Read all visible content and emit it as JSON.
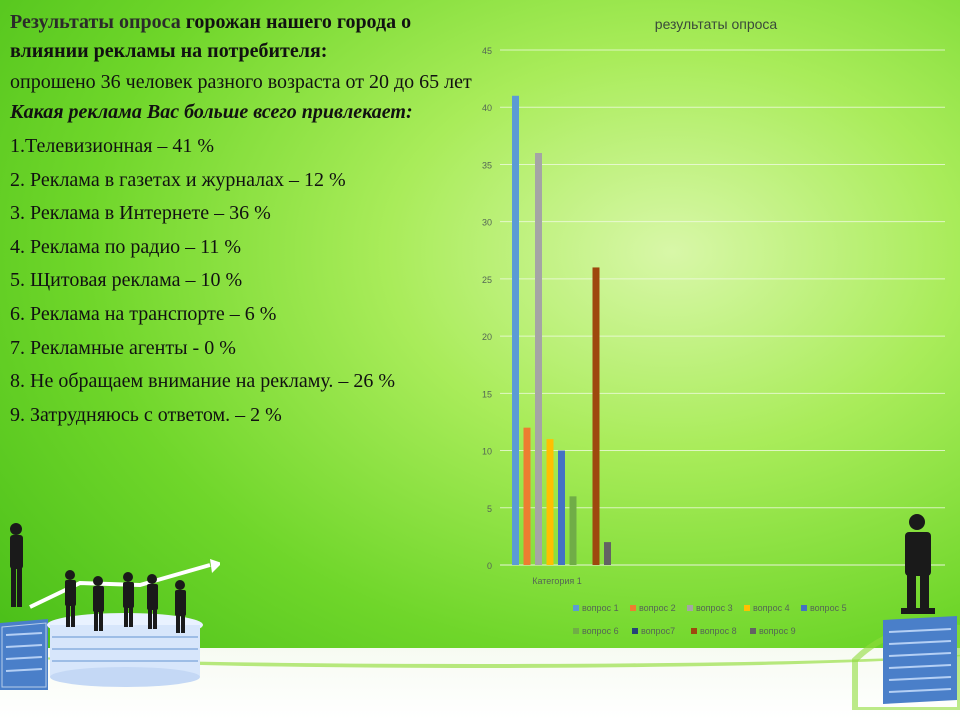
{
  "slide": {
    "title_part1": "Результаты опроса",
    "title_part2": " горожан нашего города о влиянии рекламы на потребителя:",
    "intro": "опрошено 36 человек разного возраста от 20 до 65 лет",
    "question": "Какая реклама Вас больше всего привлекает:",
    "items": [
      "1.Телевизионная – 41 %",
      "2. Реклама в газетах и журналах – 12 %",
      "3. Реклама в Интернете – 36 %",
      "4. Реклама по радио – 11 %",
      "5. Щитовая реклама – 10 %",
      "6. Реклама на транспорте – 6 %",
      "7. Рекламные агенты - 0 %",
      "8. Не обращаем внимание на рекламу. – 26 %",
      "9. Затрудняюсь с ответом. – 2 %"
    ]
  },
  "chart_data": {
    "type": "bar",
    "title": "результаты опроса",
    "categories": [
      "Категория 1"
    ],
    "ylim": [
      0,
      45
    ],
    "yticks": [
      0,
      5,
      10,
      15,
      20,
      25,
      30,
      35,
      40,
      45
    ],
    "grid": true,
    "legend_position": "bottom",
    "series": [
      {
        "name": "вопрос 1",
        "values": [
          41
        ],
        "color": "#5b9bd5"
      },
      {
        "name": "вопрос 2",
        "values": [
          12
        ],
        "color": "#ed7d31"
      },
      {
        "name": "вопрос 3",
        "values": [
          36
        ],
        "color": "#a5a5a5"
      },
      {
        "name": "вопрос 4",
        "values": [
          11
        ],
        "color": "#ffc000"
      },
      {
        "name": "вопрос 5",
        "values": [
          10
        ],
        "color": "#4472c4"
      },
      {
        "name": "вопрос 6",
        "values": [
          6
        ],
        "color": "#70ad47"
      },
      {
        "name": "вопрос7",
        "values": [
          0
        ],
        "color": "#264478"
      },
      {
        "name": "вопрос 8",
        "values": [
          26
        ],
        "color": "#9e480e"
      },
      {
        "name": "вопрос 9",
        "values": [
          2
        ],
        "color": "#636363"
      }
    ]
  }
}
